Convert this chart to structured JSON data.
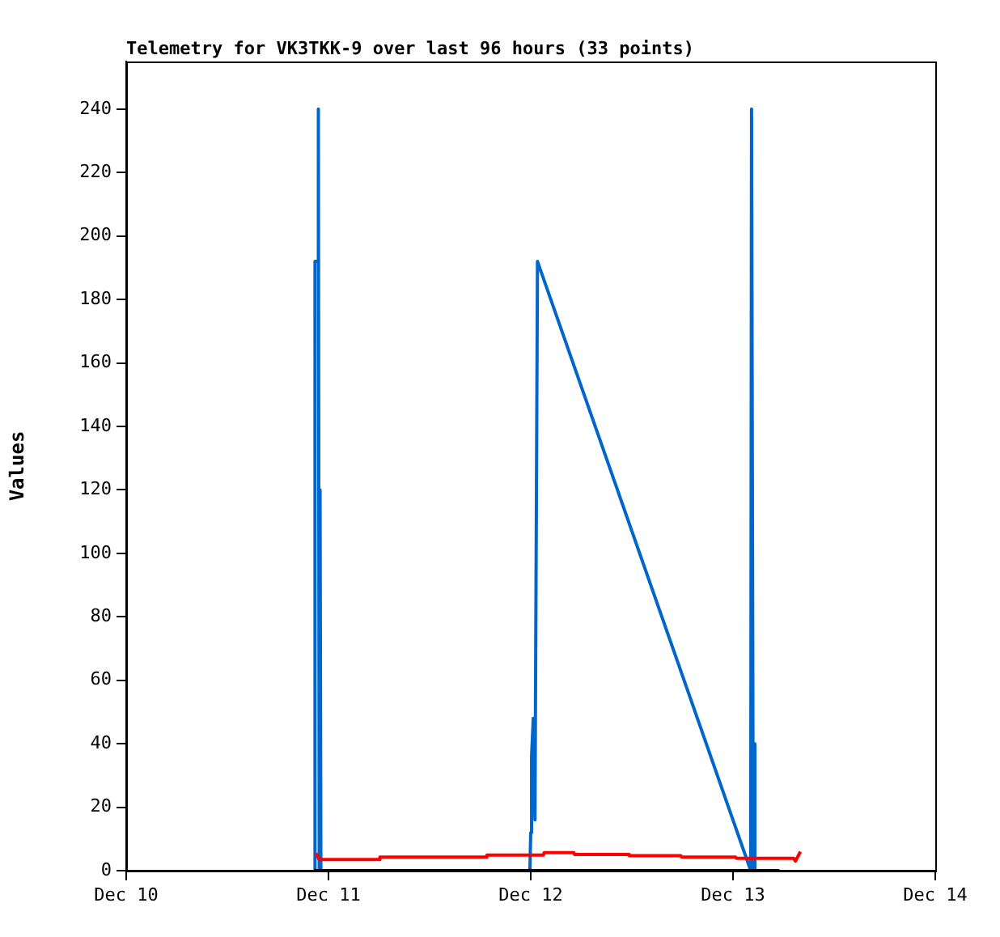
{
  "chart_data": {
    "type": "line",
    "title": "Telemetry for VK3TKK-9 over last 96 hours (33 points)",
    "ylabel": "Values",
    "xlim": [
      "--12-10",
      "--12-14"
    ],
    "xticks": [
      {
        "value": "--12-10",
        "label": "Dec 10"
      },
      {
        "value": "--12-11",
        "label": "Dec 11"
      },
      {
        "value": "--12-12",
        "label": "Dec 12"
      },
      {
        "value": "--12-13",
        "label": "Dec 13"
      },
      {
        "value": "--12-14",
        "label": "Dec 14"
      }
    ],
    "ylim": [
      0,
      255
    ],
    "yticks": [
      0,
      20,
      40,
      60,
      80,
      100,
      120,
      140,
      160,
      180,
      200,
      220,
      240
    ],
    "grid": false,
    "legend": false,
    "marker": "none",
    "line_style": "solid",
    "series": [
      {
        "color": "#000000",
        "x": [
          "--12-10T22:18",
          "--12-13T05:30"
        ],
        "values": [
          0,
          0
        ]
      },
      {
        "color": "#ff0000",
        "x": [
          "--12-10T22:30",
          "--12-10T22:54",
          "--12-11T06:00",
          "--12-11T06:06",
          "--12-11T18:42",
          "--12-11T18:48",
          "--12-12T01:30",
          "--12-12T01:36",
          "--12-12T05:06",
          "--12-12T05:12",
          "--12-12T11:36",
          "--12-12T11:42",
          "--12-12T17:48",
          "--12-12T17:54",
          "--12-13T00:18",
          "--12-13T00:24",
          "--12-13T07:12",
          "--12-13T07:24",
          "--12-13T08:00"
        ],
        "values": [
          5.5,
          3.5,
          3.5,
          4.3,
          4.3,
          4.9,
          4.9,
          5.7,
          5.7,
          5.1,
          5.1,
          4.7,
          4.7,
          4.3,
          4.3,
          3.9,
          3.9,
          3,
          6
        ]
      },
      {
        "color": "#0066cc",
        "x": [
          "--12-10T22:18",
          "--12-10T22:24",
          "--12-10T22:42",
          "--12-10T22:48",
          "--12-10T22:54",
          "--12-10T23:00",
          "--12-10T23:06",
          "--12-11T23:54",
          "--12-12T00:00",
          "--12-12T00:06",
          "--12-12T00:18",
          "--12-12T00:30",
          "--12-12T00:48",
          "--12-13T02:06",
          "--12-13T02:12",
          "--12-13T02:24",
          "--12-13T02:30",
          "--12-13T02:36"
        ],
        "values": [
          0,
          192,
          192,
          240,
          0,
          120,
          0,
          0,
          12,
          36,
          48,
          16,
          192,
          0,
          240,
          0,
          40,
          0
        ]
      }
    ]
  }
}
